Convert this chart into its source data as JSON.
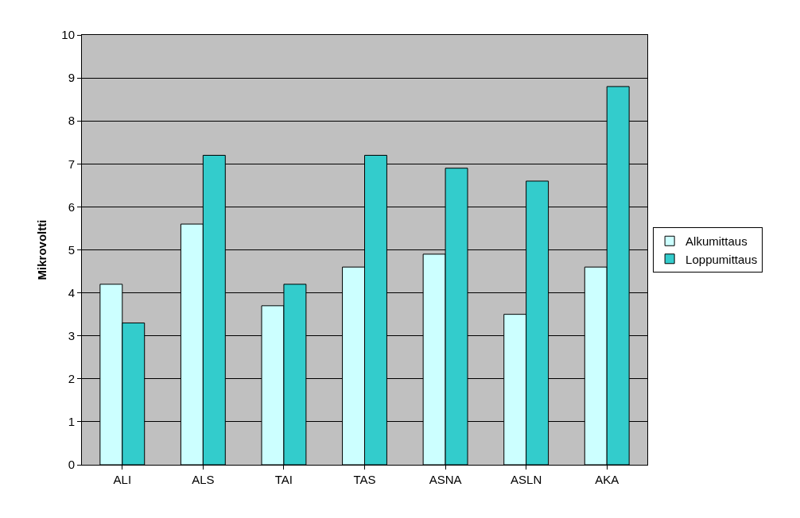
{
  "chart_data": {
    "type": "bar",
    "ylabel": "Mikrovoltti",
    "categories": [
      "ALI",
      "ALS",
      "TAI",
      "TAS",
      "ASNA",
      "ASLN",
      "AKA"
    ],
    "series": [
      {
        "name": "Alkumittaus",
        "color": "#ccffff",
        "values": [
          4.2,
          5.6,
          3.7,
          4.6,
          4.9,
          3.5,
          4.6
        ]
      },
      {
        "name": "Loppumittaus",
        "color": "#33cccc",
        "values": [
          3.3,
          7.2,
          4.2,
          7.2,
          6.9,
          6.6,
          8.8
        ]
      }
    ],
    "ylim": [
      0,
      10
    ],
    "yticks": [
      0,
      1,
      2,
      3,
      4,
      5,
      6,
      7,
      8,
      9,
      10
    ],
    "grid": "y",
    "legend": "right"
  }
}
